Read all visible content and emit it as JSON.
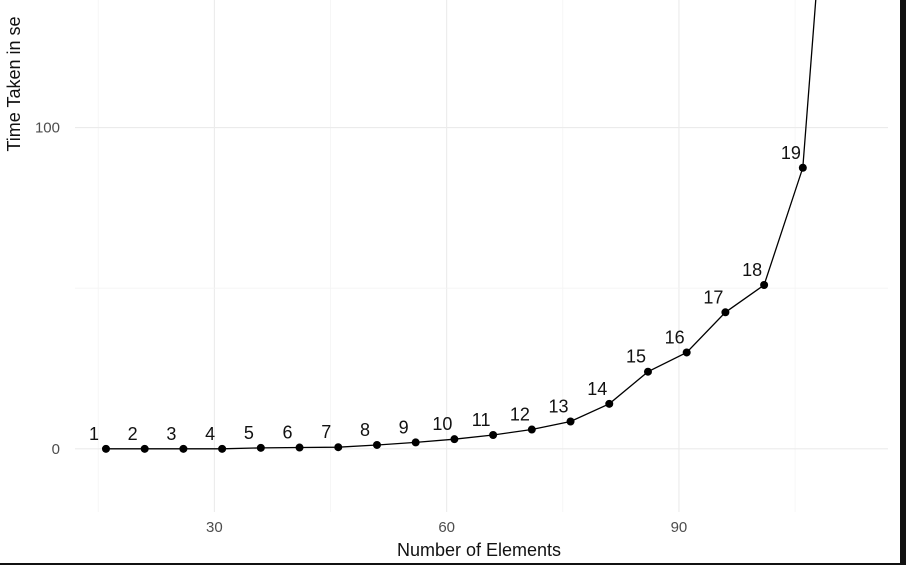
{
  "chart_data": {
    "type": "line",
    "xlabel": "Number of Elements",
    "ylabel": "Time Taken in se",
    "xlim": [
      12,
      117
    ],
    "ylim": [
      -15,
      150
    ],
    "x_ticks": [
      30,
      60,
      90
    ],
    "y_ticks": [
      0,
      100
    ],
    "grid": true,
    "series": [
      {
        "x": [
          16,
          21,
          26,
          31,
          36,
          41,
          46,
          51,
          56,
          61,
          66,
          71,
          76,
          81,
          86,
          91,
          96,
          101,
          106,
          108
        ],
        "y": [
          0,
          0,
          0,
          0,
          0.3,
          0.4,
          0.5,
          1.2,
          2,
          3,
          4.3,
          6,
          8.5,
          14,
          24,
          30,
          42.5,
          51,
          87.5,
          150
        ],
        "labels": [
          "1",
          "2",
          "3",
          "4",
          "5",
          "6",
          "7",
          "8",
          "9",
          "10",
          "11",
          "12",
          "13",
          "14",
          "15",
          "16",
          "17",
          "18",
          "19",
          ""
        ]
      }
    ]
  }
}
